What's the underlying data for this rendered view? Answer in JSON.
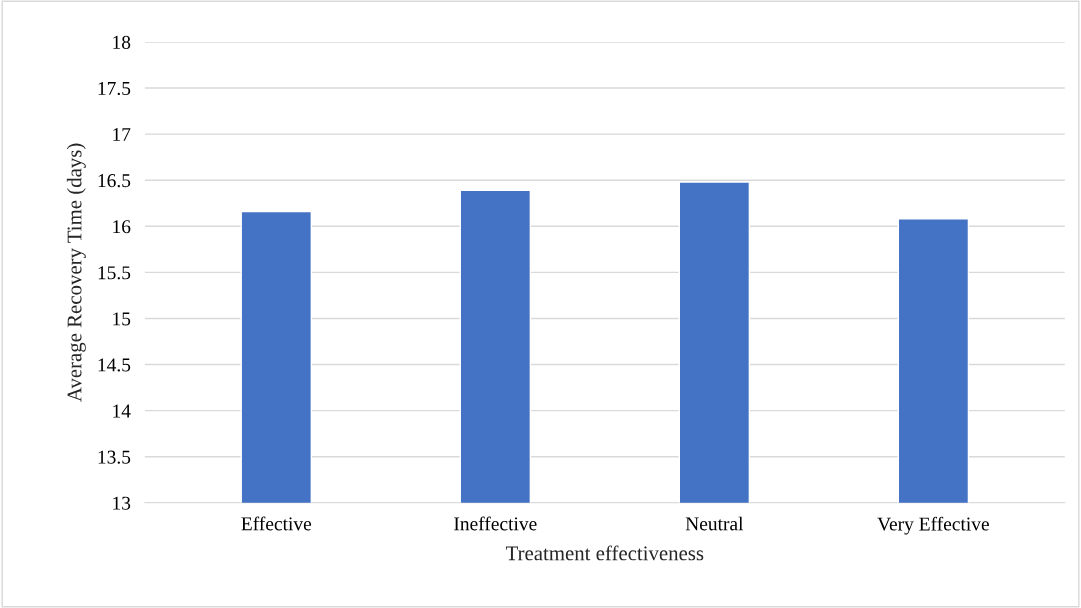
{
  "chart_data": {
    "type": "bar",
    "xlabel": "Treatment effectiveness",
    "ylabel": "Average Recovery Time (days)",
    "categories": [
      "Effective",
      "Ineffective",
      "Neutral",
      "Very Effective"
    ],
    "values": [
      16.16,
      16.39,
      16.48,
      16.08
    ],
    "color": "#4472c4",
    "ylim": [
      13,
      18
    ],
    "yticks": [
      13,
      13.5,
      14,
      14.5,
      15,
      15.5,
      16,
      16.5,
      17,
      17.5,
      18
    ],
    "grid": "y"
  }
}
